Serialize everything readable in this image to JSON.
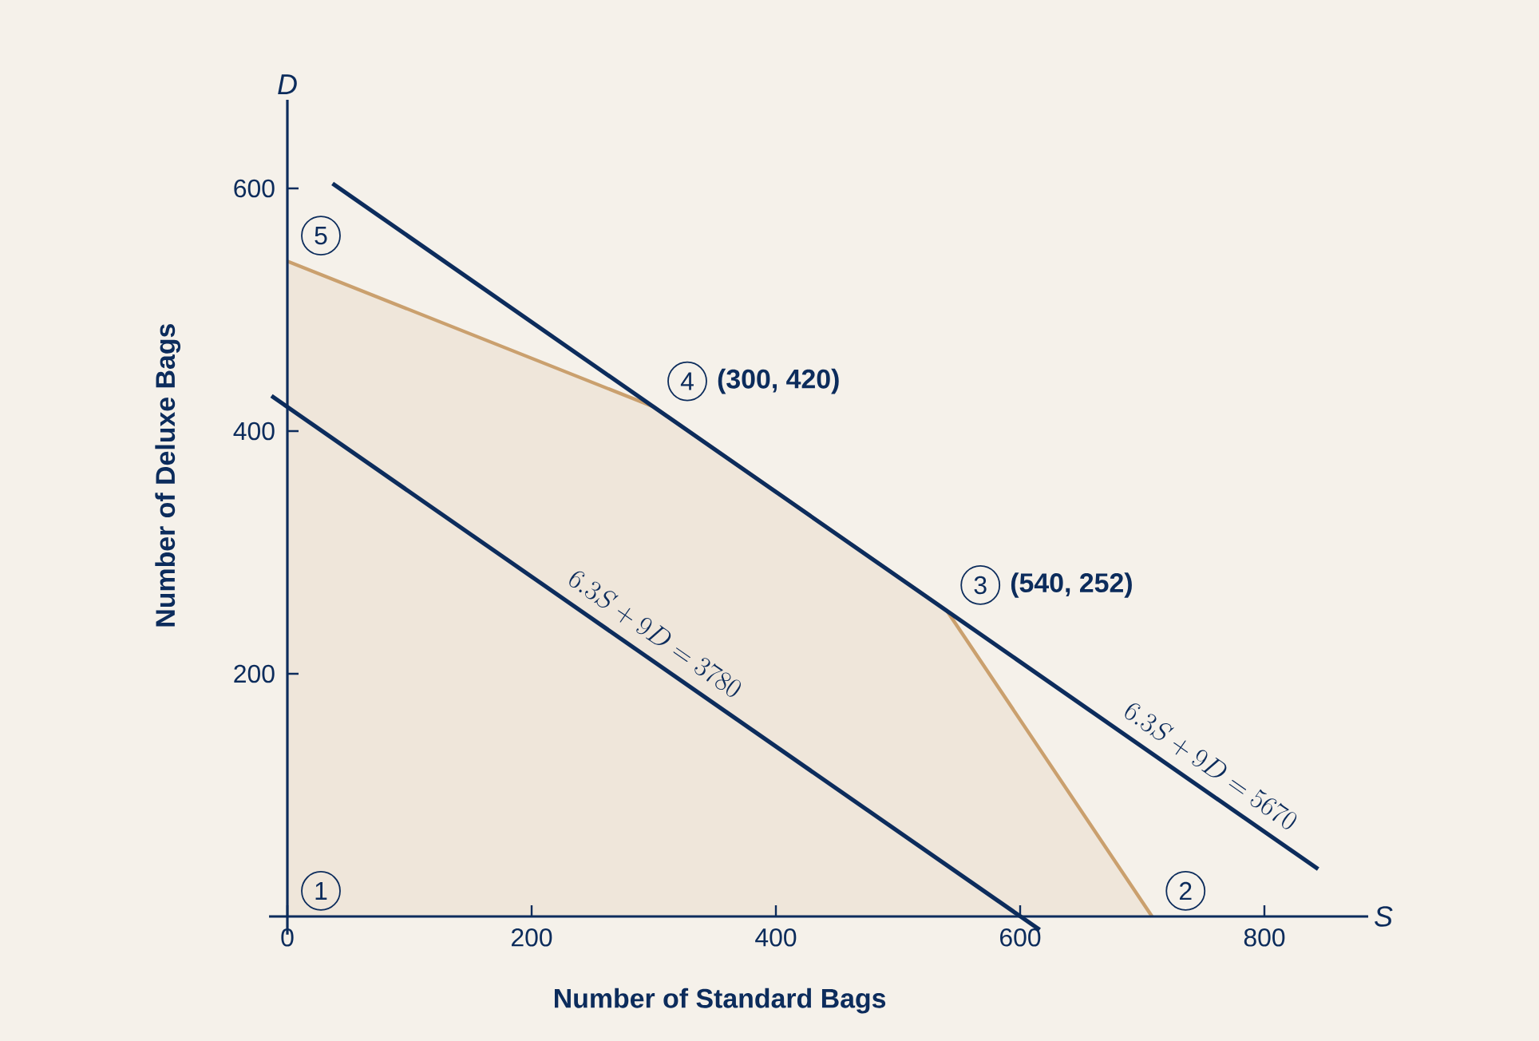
{
  "chart_data": {
    "type": "line",
    "xlabel": "Number of Standard Bags",
    "ylabel": "Number of Deluxe Bags",
    "xlim": [
      -15,
      885
    ],
    "ylim": [
      -15,
      673
    ],
    "xticks": [
      0,
      200,
      400,
      600,
      800
    ],
    "yticks": [
      200,
      400,
      600
    ],
    "grid": false,
    "marker": "none",
    "line_style": "solid",
    "series": [
      {
        "type": "area",
        "color": "#caa06e",
        "x": [
          0,
          300,
          540,
          708
        ],
        "values": [
          540,
          420,
          252,
          0
        ]
      },
      {
        "color": "#0c2c5c",
        "x": [
          -13,
          616
        ],
        "values": [
          429,
          -11
        ]
      },
      {
        "color": "#0c2c5c",
        "x": [
          37,
          844
        ],
        "values": [
          604,
          39
        ]
      }
    ],
    "annotations": [
      {
        "text": "1",
        "x": 0,
        "y": 0
      },
      {
        "text": "2",
        "x": 708,
        "y": 0
      },
      {
        "text": "3",
        "x": 540,
        "y": 252
      },
      {
        "text": "4",
        "x": 300,
        "y": 420
      },
      {
        "text": "5",
        "x": 0,
        "y": 540
      },
      {
        "text": "(540, 252)",
        "x": 540,
        "y": 252
      },
      {
        "text": "(300, 420)",
        "x": 300,
        "y": 420
      },
      {
        "text": "6.3S + 9D = 3780",
        "x": 290,
        "y": 217
      },
      {
        "text": "6.3S + 9D = 5670",
        "x": 745,
        "y": 108
      },
      "S",
      "D"
    ]
  }
}
